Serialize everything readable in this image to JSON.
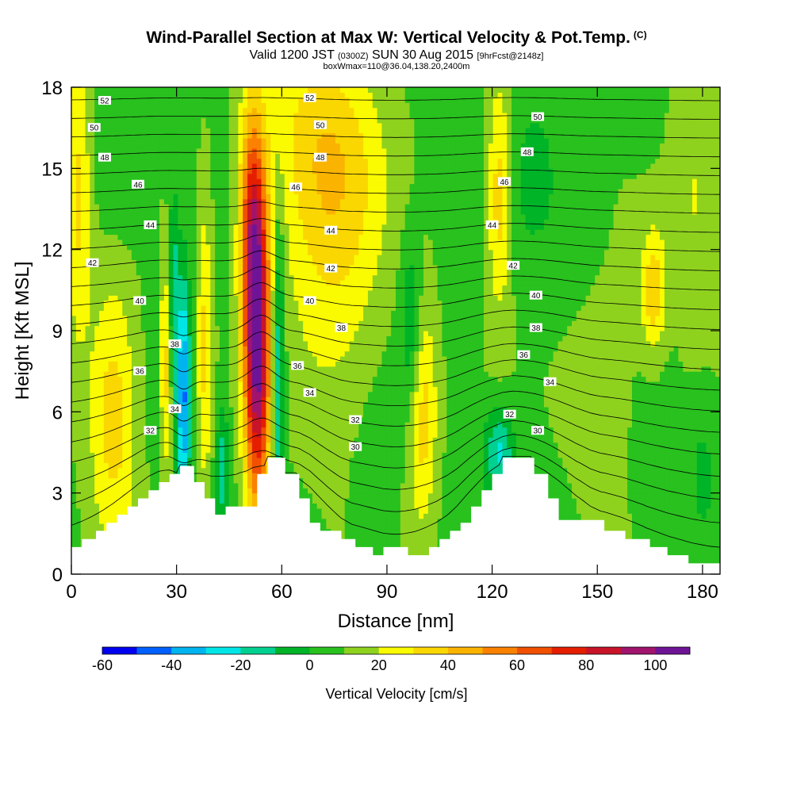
{
  "header": {
    "title": "Wind-Parallel Section at Max W: Vertical Velocity & Pot.Temp.",
    "copyright": "(C)",
    "valid_main": "Valid 1200 JST",
    "valid_utc": "(0300Z)",
    "valid_date": "SUN 30 Aug 2015",
    "forecast": "[9hrFcst@2148z]",
    "box_info": "boxWmax=110@36.04,138.20,2400m"
  },
  "chart_data": {
    "type": "heatmap",
    "xlabel": "Distance [nm]",
    "ylabel": "Height [Kft MSL]",
    "xlim": [
      0,
      185
    ],
    "ylim": [
      0,
      18
    ],
    "x_ticks": [
      0,
      30,
      60,
      90,
      120,
      150,
      180
    ],
    "y_ticks": [
      0,
      3,
      6,
      9,
      12,
      15,
      18
    ],
    "colorbar": {
      "label": "Vertical Velocity [cm/s]",
      "min": -60,
      "max": 110,
      "step": 10,
      "tick_labels": [
        -60,
        -40,
        -20,
        0,
        20,
        40,
        60,
        80,
        100
      ],
      "colors": [
        "#0000f0",
        "#0060ff",
        "#00b4f0",
        "#00e6e6",
        "#00d090",
        "#00b428",
        "#28c11e",
        "#8ed21e",
        "#fafa00",
        "#fad700",
        "#fab400",
        "#fa8200",
        "#f05000",
        "#e61e00",
        "#c81428",
        "#a0146e",
        "#6e1496"
      ]
    },
    "terrain": [
      [
        0,
        1
      ],
      [
        3,
        1
      ],
      [
        3,
        1.3
      ],
      [
        7,
        1.3
      ],
      [
        7,
        1.6
      ],
      [
        10,
        1.6
      ],
      [
        10,
        1.9
      ],
      [
        13,
        1.9
      ],
      [
        13,
        2.2
      ],
      [
        16,
        2.2
      ],
      [
        16,
        2.5
      ],
      [
        19,
        2.5
      ],
      [
        19,
        2.8
      ],
      [
        22,
        2.8
      ],
      [
        22,
        3.1
      ],
      [
        25,
        3.1
      ],
      [
        25,
        3.4
      ],
      [
        28,
        3.4
      ],
      [
        28,
        3.7
      ],
      [
        31,
        3.7
      ],
      [
        31,
        4
      ],
      [
        35,
        4
      ],
      [
        35,
        3.4
      ],
      [
        38,
        3.4
      ],
      [
        38,
        2.8
      ],
      [
        41,
        2.8
      ],
      [
        41,
        2.2
      ],
      [
        44,
        2.2
      ],
      [
        44,
        2.5
      ],
      [
        53,
        2.5
      ],
      [
        53,
        3.7
      ],
      [
        56,
        3.7
      ],
      [
        56,
        4.3
      ],
      [
        61,
        4.3
      ],
      [
        61,
        3.7
      ],
      [
        65,
        3.7
      ],
      [
        65,
        2.8
      ],
      [
        68,
        2.8
      ],
      [
        68,
        1.9
      ],
      [
        71,
        1.9
      ],
      [
        71,
        1.6
      ],
      [
        77,
        1.6
      ],
      [
        77,
        1.3
      ],
      [
        81,
        1.3
      ],
      [
        81,
        1
      ],
      [
        86,
        1
      ],
      [
        86,
        0.7
      ],
      [
        89,
        0.7
      ],
      [
        89,
        1
      ],
      [
        96,
        1
      ],
      [
        96,
        0.7
      ],
      [
        102,
        0.7
      ],
      [
        102,
        1
      ],
      [
        105,
        1
      ],
      [
        105,
        1.3
      ],
      [
        108,
        1.3
      ],
      [
        108,
        1.6
      ],
      [
        111,
        1.6
      ],
      [
        111,
        1.9
      ],
      [
        114,
        1.9
      ],
      [
        114,
        2.5
      ],
      [
        117,
        2.5
      ],
      [
        117,
        3.1
      ],
      [
        120,
        3.1
      ],
      [
        120,
        3.7
      ],
      [
        123,
        3.7
      ],
      [
        123,
        4.3
      ],
      [
        132,
        4.3
      ],
      [
        132,
        3.7
      ],
      [
        136,
        3.7
      ],
      [
        136,
        2.8
      ],
      [
        139,
        2.8
      ],
      [
        139,
        2
      ],
      [
        152,
        2
      ],
      [
        152,
        1.6
      ],
      [
        158,
        1.6
      ],
      [
        158,
        1.3
      ],
      [
        165,
        1.3
      ],
      [
        165,
        1
      ],
      [
        170,
        1
      ],
      [
        170,
        0.7
      ],
      [
        176,
        0.7
      ],
      [
        176,
        0.4
      ],
      [
        185,
        0.4
      ]
    ],
    "w_features": [
      {
        "x": 53,
        "z": 8.5,
        "sx": 2.6,
        "sz": 4.5,
        "w": 95
      },
      {
        "x": 51,
        "z": 13,
        "sx": 2.4,
        "sz": 3,
        "w": 40
      },
      {
        "x": 59,
        "z": 7.5,
        "sx": 1.3,
        "sz": 4,
        "w": -35
      },
      {
        "x": 43,
        "z": 4,
        "sx": 1.3,
        "sz": 1.5,
        "w": -25
      },
      {
        "x": 32,
        "z": 6.5,
        "sx": 1.4,
        "sz": 3,
        "w": -48
      },
      {
        "x": 29,
        "z": 10.5,
        "sx": 1.2,
        "sz": 2.5,
        "w": -25
      },
      {
        "x": 27,
        "z": 8,
        "sx": 1.2,
        "sz": 3,
        "w": 30
      },
      {
        "x": 38,
        "z": 8.5,
        "sx": 1.6,
        "sz": 4,
        "w": 25
      },
      {
        "x": 12,
        "z": 6,
        "sx": 5,
        "sz": 3.5,
        "w": 30
      },
      {
        "x": 2,
        "z": 14,
        "sx": 2.5,
        "sz": 4,
        "w": 25
      },
      {
        "x": 75,
        "z": 12,
        "sx": 10,
        "sz": 5,
        "w": 20
      },
      {
        "x": 70,
        "z": 16,
        "sx": 12,
        "sz": 3,
        "w": 20
      },
      {
        "x": 100,
        "z": 6,
        "sx": 3,
        "sz": 3,
        "w": 30
      },
      {
        "x": 97,
        "z": 9,
        "sx": 2.2,
        "sz": 2.5,
        "w": -22
      },
      {
        "x": 122,
        "z": 4.5,
        "sx": 3,
        "sz": 1.2,
        "w": -30
      },
      {
        "x": 122,
        "z": 14,
        "sx": 2.5,
        "sz": 3,
        "w": 30
      },
      {
        "x": 132,
        "z": 15,
        "sx": 5,
        "sz": 2.5,
        "w": -8
      },
      {
        "x": 145,
        "z": 12,
        "sx": 6,
        "sz": 3,
        "w": -6
      },
      {
        "x": 166,
        "z": 10.5,
        "sx": 2.5,
        "sz": 1.6,
        "w": 30
      },
      {
        "x": 150,
        "z": 7.5,
        "sx": 8,
        "sz": 3,
        "w": 13
      },
      {
        "x": 178,
        "z": 14,
        "sx": 5,
        "sz": 4,
        "w": 14
      },
      {
        "x": 180,
        "z": 4,
        "sx": 3,
        "sz": 2,
        "w": -10
      },
      {
        "x": 86,
        "z": 3,
        "sx": 4,
        "sz": 2,
        "w": -6
      },
      {
        "x": 15,
        "z": 14.5,
        "sx": 6,
        "sz": 2,
        "w": -8
      }
    ],
    "theta_levels": [
      30,
      31,
      32,
      33,
      34,
      35,
      36,
      37,
      38,
      39,
      40,
      41,
      42,
      43,
      44,
      45,
      46,
      47,
      48,
      49,
      50,
      51,
      52
    ],
    "contour_labels": [
      {
        "text": "52",
        "x": 9.5,
        "z": 17.5
      },
      {
        "text": "52",
        "x": 68,
        "z": 17.6
      },
      {
        "text": "50",
        "x": 6.5,
        "z": 16.5
      },
      {
        "text": "50",
        "x": 71,
        "z": 16.6
      },
      {
        "text": "50",
        "x": 133,
        "z": 16.9
      },
      {
        "text": "48",
        "x": 9.5,
        "z": 15.4
      },
      {
        "text": "48",
        "x": 71,
        "z": 15.4
      },
      {
        "text": "48",
        "x": 130,
        "z": 15.6
      },
      {
        "text": "46",
        "x": 19,
        "z": 14.4
      },
      {
        "text": "46",
        "x": 64,
        "z": 14.3
      },
      {
        "text": "46",
        "x": 123.5,
        "z": 14.5
      },
      {
        "text": "44",
        "x": 22.5,
        "z": 12.9
      },
      {
        "text": "44",
        "x": 74,
        "z": 12.7
      },
      {
        "text": "44",
        "x": 120,
        "z": 12.9
      },
      {
        "text": "42",
        "x": 6,
        "z": 11.5
      },
      {
        "text": "42",
        "x": 74,
        "z": 11.3
      },
      {
        "text": "42",
        "x": 126,
        "z": 11.4
      },
      {
        "text": "40",
        "x": 19.5,
        "z": 10.1
      },
      {
        "text": "40",
        "x": 68,
        "z": 10.1
      },
      {
        "text": "40",
        "x": 132.5,
        "z": 10.3
      },
      {
        "text": "38",
        "x": 29.5,
        "z": 8.5
      },
      {
        "text": "38",
        "x": 77,
        "z": 9.1
      },
      {
        "text": "38",
        "x": 132.5,
        "z": 9.1
      },
      {
        "text": "36",
        "x": 19.5,
        "z": 7.5
      },
      {
        "text": "36",
        "x": 64.5,
        "z": 7.7
      },
      {
        "text": "36",
        "x": 129,
        "z": 8.1
      },
      {
        "text": "34",
        "x": 29.5,
        "z": 6.1
      },
      {
        "text": "34",
        "x": 68,
        "z": 6.7
      },
      {
        "text": "34",
        "x": 136.5,
        "z": 7.1
      },
      {
        "text": "32",
        "x": 22.5,
        "z": 5.3
      },
      {
        "text": "32",
        "x": 81,
        "z": 5.7
      },
      {
        "text": "32",
        "x": 125,
        "z": 5.9
      },
      {
        "text": "30",
        "x": 81,
        "z": 4.7
      },
      {
        "text": "30",
        "x": 133,
        "z": 5.3
      }
    ]
  }
}
